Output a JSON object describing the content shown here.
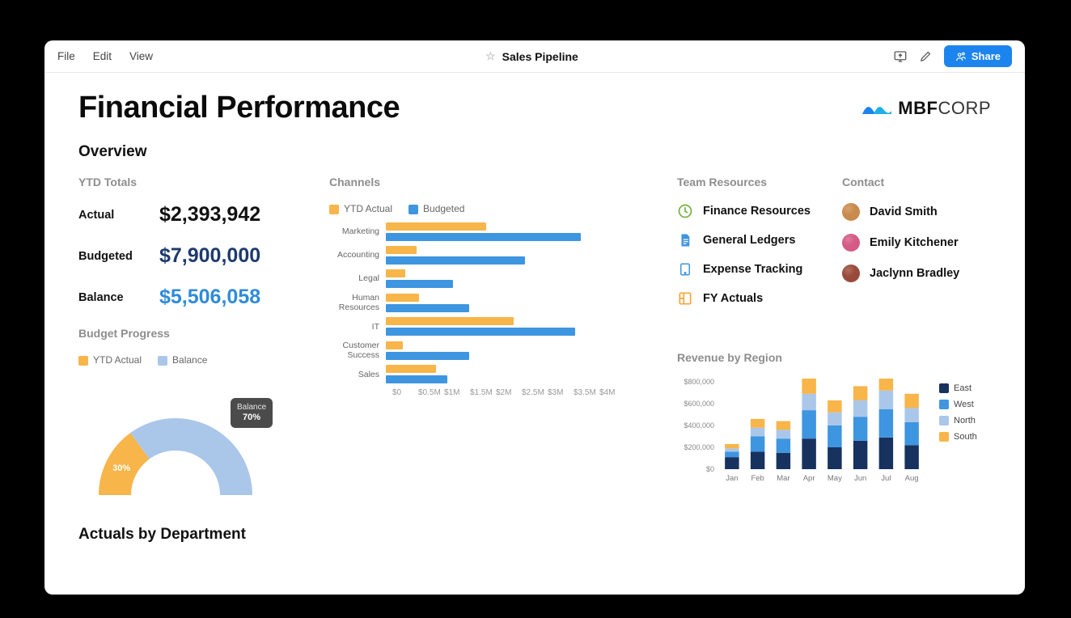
{
  "menubar": {
    "items": [
      "File",
      "Edit",
      "View"
    ],
    "doc_title": "Sales Pipeline",
    "share_label": "Share"
  },
  "page": {
    "title": "Financial Performance",
    "overview_label": "Overview",
    "footer_section": "Actuals by Department"
  },
  "brand": {
    "logo_main": "MBF",
    "logo_sub": "CORP",
    "logo_colors": [
      "#1c84ee",
      "#1eb1e6"
    ]
  },
  "ytd": {
    "heading": "YTD Totals",
    "rows": [
      {
        "label": "Actual",
        "value": "$2,393,942",
        "color": "#111111"
      },
      {
        "label": "Budgeted",
        "value": "$7,900,000",
        "color": "#1e3a6e"
      },
      {
        "label": "Balance",
        "value": "$5,506,058",
        "color": "#2f8bda"
      }
    ]
  },
  "budget_progress": {
    "heading": "Budget Progress",
    "legend": [
      {
        "label": "YTD Actual",
        "color": "#f7b54a"
      },
      {
        "label": "Balance",
        "color": "#aac7ea"
      }
    ],
    "actual_pct": 30,
    "balance_pct": 70,
    "ring_colors": {
      "actual": "#f7b54a",
      "balance": "#aac7ea"
    },
    "tooltip": {
      "label": "Balance",
      "value": "70%"
    }
  },
  "channels": {
    "heading": "Channels",
    "legend": [
      {
        "label": "YTD Actual",
        "color": "#f7b54a"
      },
      {
        "label": "Budgeted",
        "color": "#3e95e0"
      }
    ],
    "x_axis": [
      "$0",
      "$0.5M",
      "$1M",
      "$1.5M",
      "$2M",
      "$2.5M",
      "$3M",
      "$3.5M",
      "$4M"
    ],
    "x_max": 4.0,
    "bar_colors": {
      "actual": "#f7b54a",
      "budgeted": "#3e95e0"
    },
    "rows": [
      {
        "label": "Marketing",
        "actual": 1.8,
        "budgeted": 3.5
      },
      {
        "label": "Accounting",
        "actual": 0.55,
        "budgeted": 2.5
      },
      {
        "label": "Legal",
        "actual": 0.35,
        "budgeted": 1.2
      },
      {
        "label": "Human Resources",
        "actual": 0.6,
        "budgeted": 1.5
      },
      {
        "label": "IT",
        "actual": 2.3,
        "budgeted": 3.4
      },
      {
        "label": "Customer Success",
        "actual": 0.3,
        "budgeted": 1.5
      },
      {
        "label": "Sales",
        "actual": 0.9,
        "budgeted": 1.1
      }
    ]
  },
  "team_resources": {
    "heading": "Team Resources",
    "items": [
      {
        "label": "Finance Resources",
        "icon": "clock",
        "icon_color": "#6fb23a"
      },
      {
        "label": "General Ledgers",
        "icon": "doc",
        "icon_color": "#3e95e0"
      },
      {
        "label": "Expense Tracking",
        "icon": "tablet",
        "icon_color": "#3e95e0"
      },
      {
        "label": "FY Actuals",
        "icon": "columns",
        "icon_color": "#f7a637"
      }
    ]
  },
  "contacts": {
    "heading": "Contact",
    "items": [
      {
        "name": "David Smith",
        "avatar_color": "#c98b4d"
      },
      {
        "name": "Emily Kitchener",
        "avatar_color": "#d65a86"
      },
      {
        "name": "Jaclynn Bradley",
        "avatar_color": "#9a4a3a"
      }
    ]
  },
  "revenue": {
    "heading": "Revenue by Region",
    "y_axis": [
      "$800,000",
      "$600,000",
      "$400,000",
      "$200,000",
      "$0"
    ],
    "y_max": 800000,
    "months": [
      "Jan",
      "Feb",
      "Mar",
      "Apr",
      "May",
      "Jun",
      "Jul",
      "Aug"
    ],
    "series_colors": {
      "East": "#17325e",
      "West": "#3e95e0",
      "North": "#aac7ea",
      "South": "#f7b54a"
    },
    "legend_order": [
      "East",
      "West",
      "North",
      "South"
    ],
    "data": [
      {
        "East": 110000,
        "West": 50000,
        "North": 30000,
        "South": 40000
      },
      {
        "East": 160000,
        "West": 140000,
        "North": 80000,
        "South": 80000
      },
      {
        "East": 150000,
        "West": 130000,
        "North": 80000,
        "South": 80000
      },
      {
        "East": 280000,
        "West": 260000,
        "North": 150000,
        "South": 150000
      },
      {
        "East": 200000,
        "West": 200000,
        "North": 120000,
        "South": 110000
      },
      {
        "East": 260000,
        "West": 220000,
        "North": 150000,
        "South": 130000
      },
      {
        "East": 290000,
        "West": 260000,
        "North": 170000,
        "South": 130000
      },
      {
        "East": 220000,
        "West": 210000,
        "North": 130000,
        "South": 130000
      }
    ]
  }
}
